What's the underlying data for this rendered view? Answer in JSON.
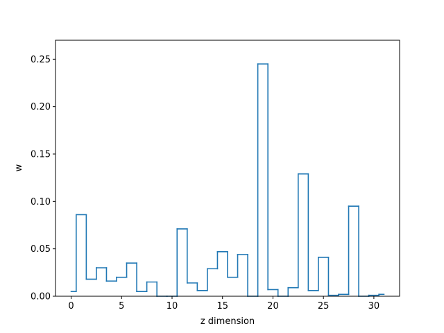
{
  "chart_data": {
    "type": "line",
    "style": "step",
    "title": "",
    "xlabel": "z dimension",
    "ylabel": "w",
    "xlim": [
      -1.55,
      32.55
    ],
    "ylim": [
      0,
      0.27
    ],
    "x_ticks": [
      0,
      5,
      10,
      15,
      20,
      25,
      30
    ],
    "x_tick_labels": [
      "0",
      "5",
      "10",
      "15",
      "20",
      "25",
      "30"
    ],
    "y_ticks": [
      0,
      0.05,
      0.1,
      0.15,
      0.2,
      0.25
    ],
    "y_tick_labels": [
      "0.00",
      "0.05",
      "0.10",
      "0.15",
      "0.20",
      "0.25"
    ],
    "grid": false,
    "line_color": "#1f77b4",
    "x": [
      0,
      1,
      2,
      3,
      4,
      5,
      6,
      7,
      8,
      9,
      10,
      11,
      12,
      13,
      14,
      15,
      16,
      17,
      18,
      19,
      20,
      21,
      22,
      23,
      24,
      25,
      26,
      27,
      28,
      29,
      30,
      31
    ],
    "values": [
      0.005,
      0.086,
      0.018,
      0.03,
      0.016,
      0.02,
      0.035,
      0.005,
      0.015,
      0.0,
      0.0,
      0.071,
      0.014,
      0.006,
      0.029,
      0.047,
      0.02,
      0.044,
      0.0,
      0.245,
      0.007,
      0.0,
      0.009,
      0.129,
      0.006,
      0.041,
      0.001,
      0.002,
      0.095,
      0.0,
      0.001,
      0.002
    ]
  }
}
